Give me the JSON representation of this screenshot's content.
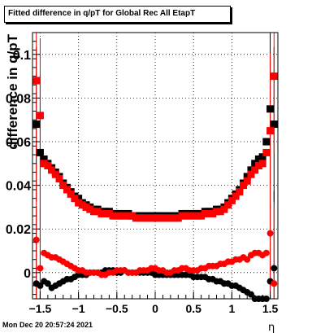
{
  "title": "Fitted difference in q/pT for Global Rec All EtapT",
  "timestamp": "Mon Dec 20 20:57:24 2021",
  "chart_data": {
    "type": "scatter",
    "title": "Fitted difference in q/pT for Global Rec All EtapT",
    "xlabel": "η",
    "ylabel": "difference in q/pT",
    "xlim": [
      -1.6,
      1.6
    ],
    "ylim": [
      -0.012,
      0.11
    ],
    "grid": true,
    "x_ticks": [
      -1.5,
      -1,
      -0.5,
      0,
      0.5,
      1,
      1.5
    ],
    "x_tick_labels": [
      "−1.5",
      "−1",
      "−0.5",
      "0",
      "0.5",
      "1",
      "1.5"
    ],
    "y_ticks": [
      0,
      0.02,
      0.04,
      0.06,
      0.08,
      0.1
    ],
    "y_tick_labels": [
      "0",
      "0.02",
      "0.04",
      "0.06",
      "0.08",
      "0.1"
    ],
    "series": [
      {
        "color": "#000000",
        "marker": "square",
        "x": [
          -1.55,
          -1.5,
          -1.45,
          -1.4,
          -1.35,
          -1.3,
          -1.25,
          -1.2,
          -1.15,
          -1.1,
          -1.05,
          -1.0,
          -0.95,
          -0.9,
          -0.85,
          -0.8,
          -0.75,
          -0.7,
          -0.65,
          -0.6,
          -0.55,
          -0.5,
          -0.45,
          -0.4,
          -0.35,
          -0.3,
          -0.25,
          -0.2,
          -0.15,
          -0.1,
          -0.05,
          0.0,
          0.05,
          0.1,
          0.15,
          0.2,
          0.25,
          0.3,
          0.35,
          0.4,
          0.45,
          0.5,
          0.55,
          0.6,
          0.65,
          0.7,
          0.75,
          0.8,
          0.85,
          0.9,
          0.95,
          1.0,
          1.05,
          1.1,
          1.15,
          1.2,
          1.25,
          1.3,
          1.35,
          1.4,
          1.45,
          1.5,
          1.55
        ],
        "y": [
          0.068,
          0.055,
          0.052,
          0.05,
          0.048,
          0.046,
          0.044,
          0.041,
          0.039,
          0.037,
          0.035,
          0.034,
          0.032,
          0.031,
          0.03,
          0.029,
          0.029,
          0.028,
          0.028,
          0.028,
          0.027,
          0.027,
          0.027,
          0.027,
          0.027,
          0.026,
          0.026,
          0.026,
          0.026,
          0.026,
          0.026,
          0.026,
          0.026,
          0.026,
          0.026,
          0.026,
          0.026,
          0.026,
          0.027,
          0.027,
          0.027,
          0.027,
          0.027,
          0.027,
          0.028,
          0.028,
          0.028,
          0.029,
          0.029,
          0.03,
          0.032,
          0.034,
          0.036,
          0.038,
          0.041,
          0.044,
          0.047,
          0.05,
          0.052,
          0.053,
          0.06,
          0.075,
          0.068
        ]
      },
      {
        "color": "#ff0000",
        "marker": "square",
        "x": [
          -1.55,
          -1.5,
          -1.45,
          -1.4,
          -1.35,
          -1.3,
          -1.25,
          -1.2,
          -1.15,
          -1.1,
          -1.05,
          -1.0,
          -0.95,
          -0.9,
          -0.85,
          -0.8,
          -0.75,
          -0.7,
          -0.65,
          -0.6,
          -0.55,
          -0.5,
          -0.45,
          -0.4,
          -0.35,
          -0.3,
          -0.25,
          -0.2,
          -0.15,
          -0.1,
          -0.05,
          0.0,
          0.05,
          0.1,
          0.15,
          0.2,
          0.25,
          0.3,
          0.35,
          0.4,
          0.45,
          0.5,
          0.55,
          0.6,
          0.65,
          0.7,
          0.75,
          0.8,
          0.85,
          0.9,
          0.95,
          1.0,
          1.05,
          1.1,
          1.15,
          1.2,
          1.25,
          1.3,
          1.35,
          1.4,
          1.45,
          1.5,
          1.55
        ],
        "y": [
          0.088,
          0.072,
          0.05,
          0.049,
          0.047,
          0.045,
          0.043,
          0.04,
          0.038,
          0.036,
          0.034,
          0.032,
          0.031,
          0.03,
          0.029,
          0.028,
          0.028,
          0.027,
          0.027,
          0.027,
          0.026,
          0.026,
          0.026,
          0.026,
          0.026,
          0.026,
          0.025,
          0.025,
          0.025,
          0.025,
          0.025,
          0.025,
          0.025,
          0.025,
          0.025,
          0.025,
          0.025,
          0.025,
          0.026,
          0.026,
          0.026,
          0.026,
          0.026,
          0.026,
          0.027,
          0.027,
          0.027,
          0.028,
          0.028,
          0.029,
          0.031,
          0.033,
          0.035,
          0.037,
          0.04,
          0.042,
          0.045,
          0.047,
          0.049,
          0.05,
          0.055,
          0.065,
          0.09
        ]
      },
      {
        "color": "#000000",
        "marker": "circle",
        "x": [
          -1.55,
          -1.5,
          -1.45,
          -1.4,
          -1.35,
          -1.3,
          -1.25,
          -1.2,
          -1.15,
          -1.1,
          -1.05,
          -1.0,
          -0.95,
          -0.9,
          -0.85,
          -0.8,
          -0.75,
          -0.7,
          -0.65,
          -0.6,
          -0.55,
          -0.5,
          -0.45,
          -0.4,
          -0.35,
          -0.3,
          -0.25,
          -0.2,
          -0.15,
          -0.1,
          -0.05,
          0.0,
          0.05,
          0.1,
          0.15,
          0.2,
          0.25,
          0.3,
          0.35,
          0.4,
          0.45,
          0.5,
          0.55,
          0.6,
          0.65,
          0.7,
          0.75,
          0.8,
          0.85,
          0.9,
          0.95,
          1.0,
          1.05,
          1.1,
          1.15,
          1.2,
          1.25,
          1.3,
          1.35,
          1.4,
          1.45,
          1.5,
          1.55
        ],
        "y": [
          -0.005,
          -0.006,
          -0.004,
          -0.005,
          -0.007,
          -0.006,
          -0.005,
          -0.004,
          -0.003,
          -0.003,
          -0.002,
          -0.001,
          -0.001,
          -0.001,
          0.0,
          0.0,
          0.0,
          0.0,
          0.001,
          0.001,
          0.001,
          0.0,
          0.0,
          0.001,
          0.0,
          0.0,
          0.0,
          0.0,
          0.0,
          0.0,
          0.0,
          -0.001,
          -0.001,
          -0.001,
          -0.001,
          -0.001,
          -0.001,
          -0.001,
          -0.001,
          -0.001,
          -0.001,
          -0.002,
          -0.002,
          -0.002,
          -0.002,
          -0.003,
          -0.003,
          -0.004,
          -0.004,
          -0.005,
          -0.005,
          -0.006,
          -0.006,
          -0.007,
          -0.008,
          -0.009,
          -0.01,
          -0.012,
          -0.012,
          -0.013,
          -0.013,
          -0.004,
          0.002
        ]
      },
      {
        "color": "#ff0000",
        "marker": "circle",
        "x": [
          -1.55,
          -1.5,
          -1.45,
          -1.4,
          -1.35,
          -1.3,
          -1.25,
          -1.2,
          -1.15,
          -1.1,
          -1.05,
          -1.0,
          -0.95,
          -0.9,
          -0.85,
          -0.8,
          -0.75,
          -0.7,
          -0.65,
          -0.6,
          -0.55,
          -0.5,
          -0.45,
          -0.4,
          -0.35,
          -0.3,
          -0.25,
          -0.2,
          -0.15,
          -0.1,
          -0.05,
          0.0,
          0.05,
          0.1,
          0.15,
          0.2,
          0.25,
          0.3,
          0.35,
          0.4,
          0.45,
          0.5,
          0.55,
          0.6,
          0.65,
          0.7,
          0.75,
          0.8,
          0.85,
          0.9,
          0.95,
          1.0,
          1.05,
          1.1,
          1.15,
          1.2,
          1.25,
          1.3,
          1.35,
          1.4,
          1.45,
          1.5,
          1.55
        ],
        "y": [
          0.015,
          0.002,
          0.009,
          0.008,
          0.007,
          0.007,
          0.006,
          0.005,
          0.004,
          0.003,
          0.002,
          0.001,
          0.001,
          0.0,
          0.0,
          0.0,
          0.0,
          -0.001,
          -0.001,
          0.0,
          0.0,
          0.001,
          0.001,
          0.001,
          0.0,
          0.0,
          0.0,
          0.001,
          0.001,
          0.001,
          0.002,
          0.002,
          0.001,
          0.001,
          0.0,
          0.0,
          0.001,
          0.001,
          0.002,
          0.002,
          0.001,
          0.001,
          0.001,
          0.002,
          0.002,
          0.003,
          0.003,
          0.003,
          0.004,
          0.004,
          0.005,
          0.005,
          0.006,
          0.006,
          0.007,
          0.006,
          0.008,
          0.009,
          0.009,
          0.008,
          0.009,
          0.018,
          -0.005
        ]
      }
    ]
  }
}
